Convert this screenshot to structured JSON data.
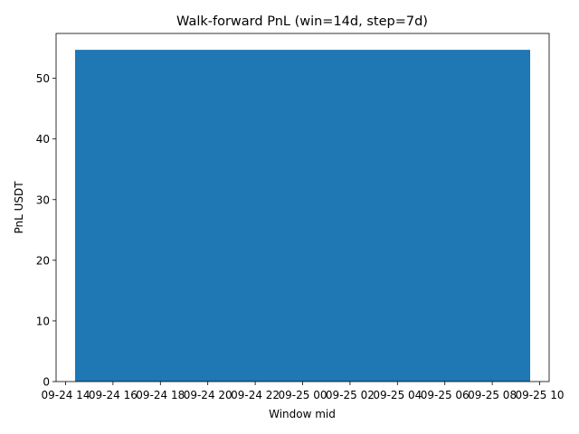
{
  "chart_data": {
    "type": "bar",
    "title": "Walk-forward PnL (win=14d, step=7d)",
    "xlabel": "Window mid",
    "ylabel": "PnL USDT",
    "x_ticks": [
      "09-24 14",
      "09-24 16",
      "09-24 18",
      "09-24 20",
      "09-24 22",
      "09-25 00",
      "09-25 02",
      "09-25 04",
      "09-25 06",
      "09-25 08",
      "09-25 10"
    ],
    "y_ticks": [
      0,
      10,
      20,
      30,
      40,
      50
    ],
    "ylim": [
      0,
      57.4
    ],
    "xlim": [
      "09-24 13:36",
      "09-25 10:24"
    ],
    "bars": [
      {
        "x_start": "09-24 14:24",
        "x_end": "09-25 09:36",
        "value": 54.7
      }
    ],
    "bar_color": "#1f77b4",
    "grid": false,
    "legend": "none"
  }
}
